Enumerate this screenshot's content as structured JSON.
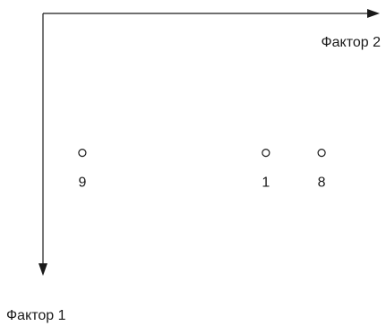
{
  "chart_data": {
    "type": "scatter",
    "x_axis_label": "Фактор 2",
    "y_axis_label": "Фактор 1",
    "points": [
      {
        "label": "9",
        "factor2": 0.12,
        "factor1": 0.55
      },
      {
        "label": "1",
        "factor2": 0.68,
        "factor1": 0.55
      },
      {
        "label": "8",
        "factor2": 0.85,
        "factor1": 0.55
      }
    ],
    "grid": false,
    "legend": "none"
  }
}
